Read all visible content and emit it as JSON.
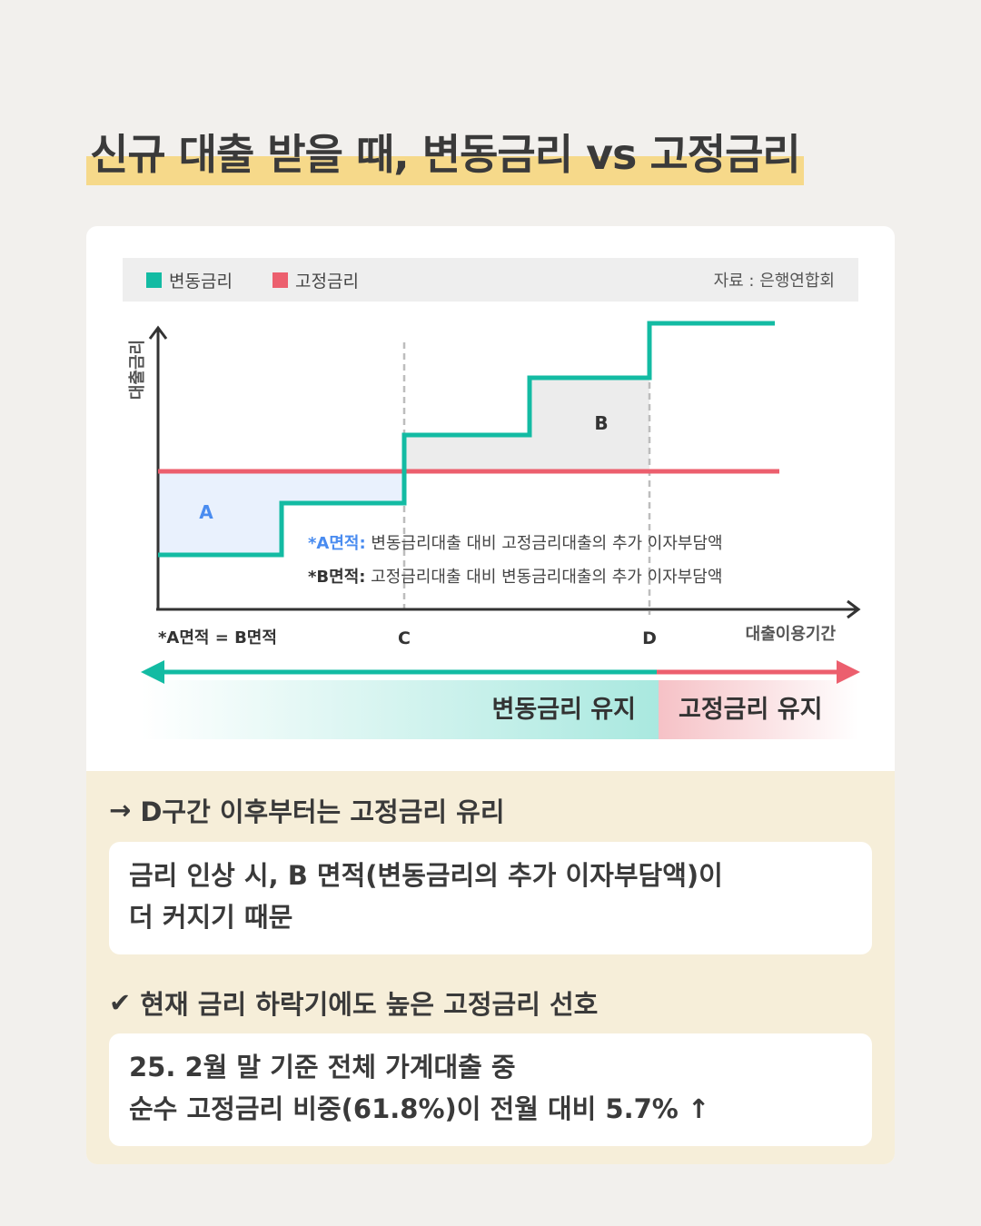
{
  "title": "신규 대출 받을 때, 변동금리 vs 고정금리",
  "legend": {
    "variable": "변동금리",
    "fixed": "고정금리",
    "source": "자료 : 은행연합회"
  },
  "colors": {
    "variable": "#13bba3",
    "fixed": "#ec5f6e",
    "area_a_fill": "#e9f1fd",
    "area_a_label": "#4a8cf0",
    "area_b_fill": "#ececec",
    "highlight": "#f6d98a"
  },
  "chart_data": {
    "type": "line",
    "ylabel": "대출금리",
    "xlabel": "대출이용기간",
    "x_ticks": [
      "C",
      "D"
    ],
    "series": [
      {
        "name": "변동금리",
        "shape": "step-up"
      },
      {
        "name": "고정금리",
        "shape": "flat"
      }
    ],
    "areas": [
      {
        "label": "A"
      },
      {
        "label": "B"
      }
    ],
    "notes": [
      {
        "key": "*A면적:",
        "text": " 변동금리대출 대비 고정금리대출의 추가 이자부담액"
      },
      {
        "key": "*B면적:",
        "text": " 고정금리대출 대비 변동금리대출의 추가 이자부담액"
      }
    ],
    "equality_note": "*A면적 = B면적"
  },
  "periods": {
    "variable_keep": "변동금리 유지",
    "fixed_keep": "고정금리 유지"
  },
  "insights": [
    {
      "symbol": "→",
      "heading": "D구간 이후부터는 고정금리 유리",
      "lines": [
        "금리 인상 시, B 면적(변동금리의 추가 이자부담액)이",
        "더 커지기 때문"
      ]
    },
    {
      "symbol": "✔",
      "heading": "현재 금리 하락기에도 높은 고정금리 선호",
      "lines": [
        "25. 2월 말 기준 전체 가계대출 중",
        "순수 고정금리 비중(61.8%)이 전월 대비 5.7% ↑"
      ]
    }
  ]
}
